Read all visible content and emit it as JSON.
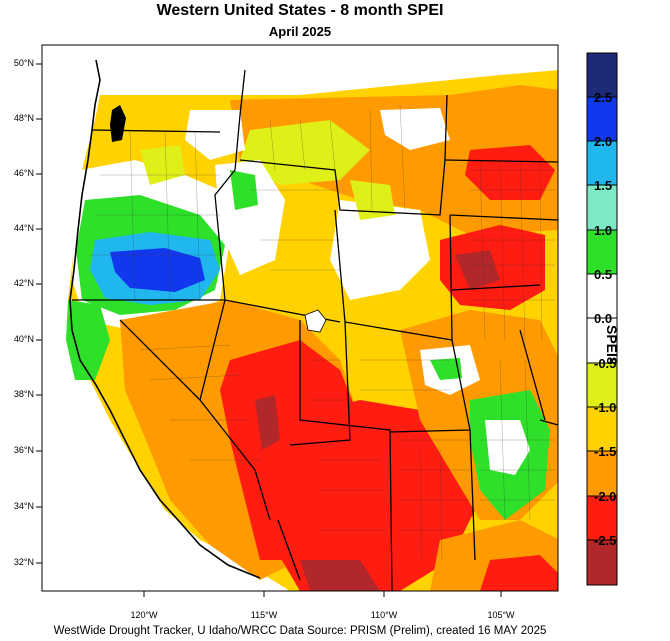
{
  "title": "Western United States - 8 month SPEI",
  "subtitle": "April 2025",
  "footer": "WestWide Drought Tracker, U Idaho/WRCC Data Source: PRISM (Prelim), created 16 MAY 2025",
  "lat_labels": [
    "50°N",
    "48°N",
    "46°N",
    "44°N",
    "42°N",
    "40°N",
    "38°N",
    "36°N",
    "34°N",
    "32°N"
  ],
  "lon_labels": [
    "120°W",
    "115°W",
    "110°W",
    "105°W"
  ],
  "colorbar": {
    "title": "SPEI8",
    "tick_labels": [
      "2.5",
      "2.0",
      "1.5",
      "1.0",
      "0.5",
      "0.0",
      "-0.5",
      "-1.0",
      "-1.5",
      "-2.0",
      "-2.5"
    ],
    "colors": [
      "#1c2a78",
      "#1238ee",
      "#20b6ee",
      "#7ee9c6",
      "#2ee02a",
      "#ffffff",
      "#ffffff",
      "#dff018",
      "#ffd200",
      "#ff9a00",
      "#ff1c10",
      "#b2282a"
    ]
  },
  "legend_colors": {
    "severe_dry": "#b2282a",
    "extreme_dry": "#ff1c10",
    "moderate_dry": "#ff9a00",
    "mild_dry": "#ffd200",
    "near_dry": "#dff018",
    "normal": "#ffffff",
    "mild_wet": "#2ee02a",
    "moderate_wet": "#7ee9c6",
    "very_wet": "#20b6ee",
    "extreme_wet": "#1238ee"
  }
}
